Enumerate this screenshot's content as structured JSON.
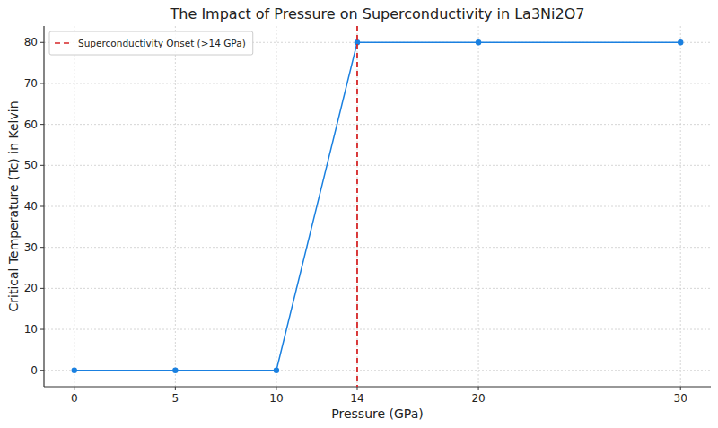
{
  "chart_data": {
    "type": "line",
    "title": "The Impact of Pressure on Superconductivity in La3Ni2O7",
    "x_label": "Pressure (GPa)",
    "y_label": "Critical Temperature (Tc) in Kelvin",
    "x": [
      0,
      5,
      10,
      14,
      20,
      30
    ],
    "series": [
      {
        "color": "#1a80e0",
        "marker": "circle",
        "values": [
          0,
          0,
          0,
          80,
          80,
          80
        ]
      },
      {
        "name": "Superconductivity Onset (>14 GPa)",
        "type": "vline",
        "color": "#d62728",
        "line_style": "dashed",
        "x": 14
      }
    ],
    "xlim": [
      -1.5,
      31.5
    ],
    "xticks": [
      0,
      5,
      10,
      14,
      20,
      30
    ],
    "ylim": [
      -4,
      84
    ],
    "yticks": [
      0,
      10,
      20,
      30,
      40,
      50,
      60,
      70,
      80
    ],
    "grid": true,
    "legend": "upper left"
  }
}
